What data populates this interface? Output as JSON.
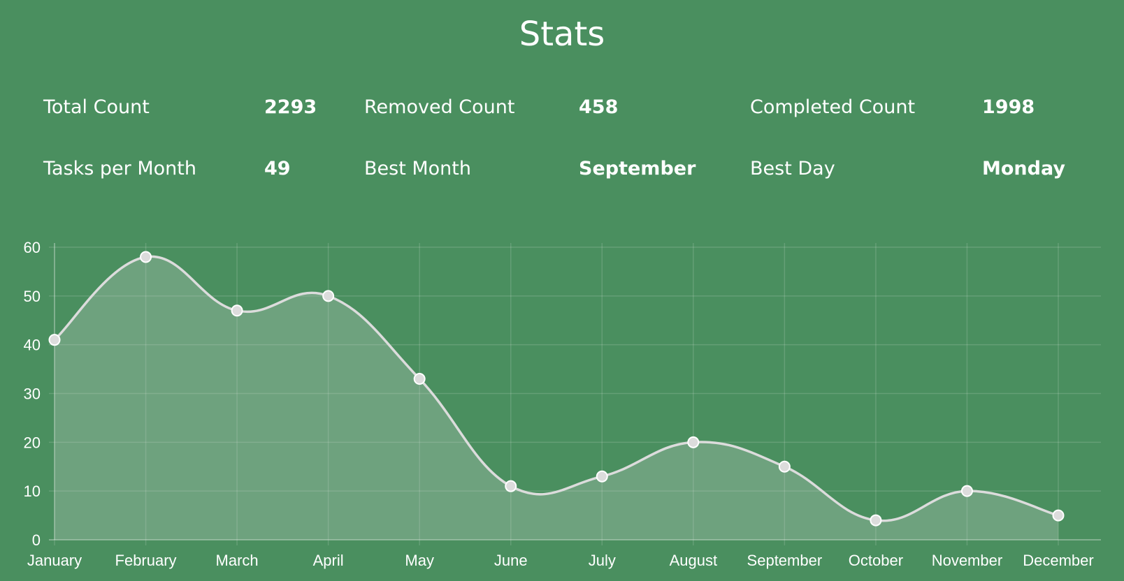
{
  "page": {
    "title": "Stats"
  },
  "stats": [
    {
      "label": "Total Count",
      "value": "2293"
    },
    {
      "label": "Removed Count",
      "value": "458"
    },
    {
      "label": "Completed Count",
      "value": "1998"
    },
    {
      "label": "Tasks per Month",
      "value": "49"
    },
    {
      "label": "Best Month",
      "value": "September"
    },
    {
      "label": "Best Day",
      "value": "Monday"
    }
  ],
  "colors": {
    "background": "#4a8f5f",
    "line": "#dcdcdc",
    "fill": "rgba(220,220,220,0.25)",
    "point": "#dcdcdc",
    "grid": "rgba(255,255,255,0.15)",
    "text": "#ffffff"
  },
  "chart_data": {
    "type": "area",
    "categories": [
      "January",
      "February",
      "March",
      "April",
      "May",
      "June",
      "July",
      "August",
      "September",
      "October",
      "November",
      "December"
    ],
    "series": [
      {
        "values": [
          41,
          58,
          47,
          50,
          33,
          11,
          13,
          20,
          15,
          4,
          10,
          5
        ]
      }
    ],
    "ylim": [
      0,
      60
    ],
    "yticks": [
      0,
      10,
      20,
      30,
      40,
      50,
      60
    ],
    "grid": true,
    "smooth": true,
    "points": true
  }
}
